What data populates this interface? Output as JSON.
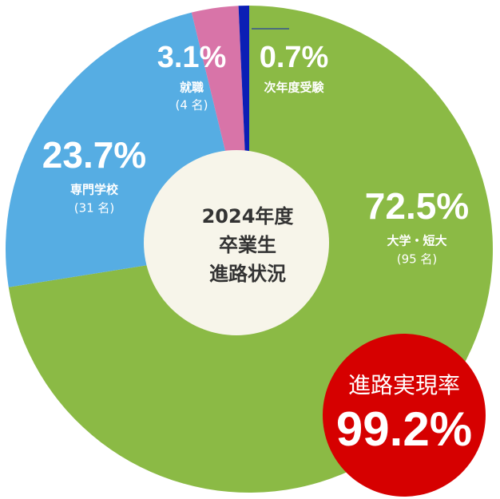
{
  "chart_data": {
    "type": "donut",
    "categories": [
      "大学・短大",
      "専門学校",
      "就職",
      "次年度受験"
    ],
    "values": [
      72.5,
      23.7,
      3.1,
      0.7
    ],
    "value_labels": [
      "72.5%",
      "23.7%",
      "3.1%",
      "0.7%"
    ],
    "sublabels": [
      "(95 名)",
      "(31 名)",
      "(4 名)",
      null
    ],
    "colors": [
      "#8bba45",
      "#56ade3",
      "#d874a8",
      "#0b1eb5"
    ],
    "center_label": [
      "2024年度",
      "卒業生",
      "進路状況"
    ],
    "highlight": {
      "label": "進路実現率",
      "value": 99.2,
      "value_label": "99.2%",
      "color": "#d60000"
    }
  }
}
